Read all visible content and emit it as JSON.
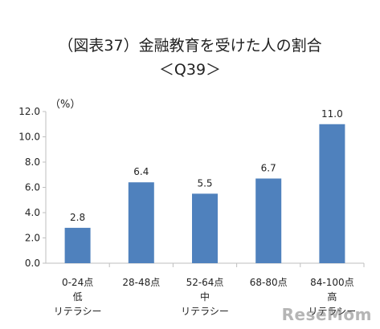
{
  "chart_data": {
    "type": "bar",
    "title": "（図表37）金融教育を受けた人の割合",
    "subtitle": "＜Q39＞",
    "unit_label": "（%）",
    "categories": [
      [
        "0-24点",
        "低",
        "リテラシー"
      ],
      [
        "28-48点"
      ],
      [
        "52-64点",
        "中",
        "リテラシー"
      ],
      [
        "68-80点"
      ],
      [
        "84-100点",
        "高",
        "リテラシー"
      ]
    ],
    "values": [
      2.8,
      6.4,
      5.5,
      6.7,
      11.0
    ],
    "value_labels": [
      "2.8",
      "6.4",
      "5.5",
      "6.7",
      "11.0"
    ],
    "ylim": [
      0,
      12
    ],
    "yticks": [
      "0.0",
      "2.0",
      "4.0",
      "6.0",
      "8.0",
      "10.0",
      "12.0"
    ],
    "grid": false,
    "colors": {
      "bar": "#4f81bd",
      "axis": "#bfbfbf",
      "text": "#222222"
    }
  },
  "watermark": "ResеMom"
}
